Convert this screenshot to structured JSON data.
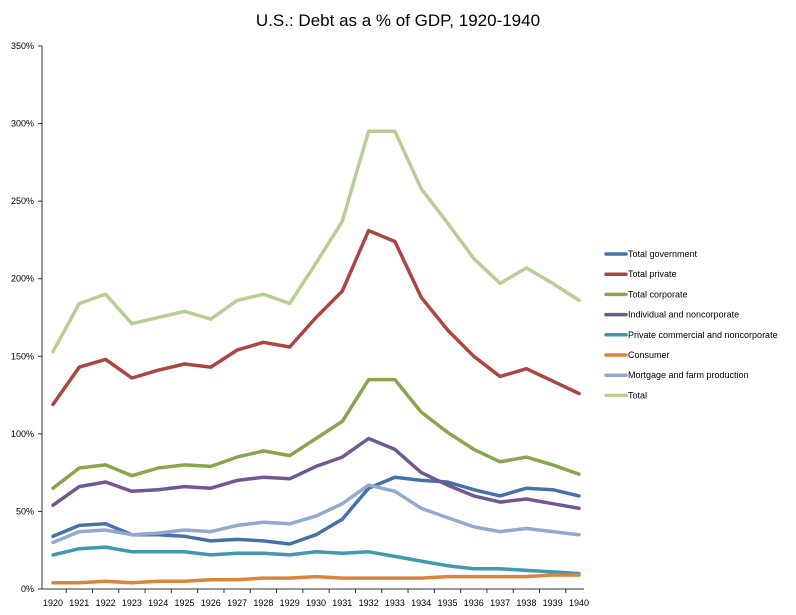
{
  "chart_data": {
    "type": "line",
    "title": "U.S.: Debt as a % of GDP, 1920-1940",
    "xlabel": "",
    "ylabel": "",
    "ylim": [
      0,
      350
    ],
    "yticks": [
      0,
      50,
      100,
      150,
      200,
      250,
      300,
      350
    ],
    "ytick_labels": [
      "0%",
      "50%",
      "100%",
      "150%",
      "200%",
      "250%",
      "300%",
      "350%"
    ],
    "grid": false,
    "legend_position": "right",
    "x": [
      "1920",
      "1921",
      "1922",
      "1923",
      "1924",
      "1925",
      "1926",
      "1927",
      "1928",
      "1929",
      "1930",
      "1931",
      "1932",
      "1933",
      "1934",
      "1935",
      "1936",
      "1937",
      "1938",
      "1939",
      "1940"
    ],
    "series": [
      {
        "name": "Total government",
        "color": "#4573a7",
        "values": [
          34,
          41,
          42,
          35,
          35,
          34,
          31,
          32,
          31,
          29,
          35,
          45,
          65,
          72,
          70,
          69,
          64,
          60,
          65,
          64,
          60
        ]
      },
      {
        "name": "Total private",
        "color": "#aa4643",
        "values": [
          119,
          143,
          148,
          136,
          141,
          145,
          143,
          154,
          159,
          156,
          175,
          192,
          231,
          224,
          188,
          167,
          150,
          137,
          142,
          134,
          126
        ]
      },
      {
        "name": "Total corporate",
        "color": "#89a54e",
        "values": [
          65,
          78,
          80,
          73,
          78,
          80,
          79,
          85,
          89,
          86,
          97,
          108,
          135,
          135,
          114,
          101,
          90,
          82,
          85,
          80,
          74
        ]
      },
      {
        "name": "Individual and noncorporate",
        "color": "#71588f",
        "values": [
          54,
          66,
          69,
          63,
          64,
          66,
          65,
          70,
          72,
          71,
          79,
          85,
          97,
          90,
          75,
          67,
          60,
          56,
          58,
          55,
          52
        ]
      },
      {
        "name": "Private commercial and noncorporate",
        "color": "#4198af",
        "values": [
          22,
          26,
          27,
          24,
          24,
          24,
          22,
          23,
          23,
          22,
          24,
          23,
          24,
          21,
          18,
          15,
          13,
          13,
          12,
          11,
          10
        ]
      },
      {
        "name": "Consumer",
        "color": "#db843d",
        "values": [
          4,
          4,
          5,
          4,
          5,
          5,
          6,
          6,
          7,
          7,
          8,
          7,
          7,
          7,
          7,
          8,
          8,
          8,
          8,
          9,
          9
        ]
      },
      {
        "name": "Mortgage and farm production",
        "color": "#93a9cf",
        "values": [
          30,
          37,
          38,
          35,
          36,
          38,
          37,
          41,
          43,
          42,
          47,
          55,
          67,
          63,
          52,
          46,
          40,
          37,
          39,
          37,
          35
        ]
      },
      {
        "name": "Total",
        "color": "#b9cd96",
        "values": [
          153,
          184,
          190,
          171,
          175,
          179,
          174,
          186,
          190,
          184,
          210,
          237,
          295,
          295,
          258,
          236,
          213,
          197,
          207,
          197,
          186
        ]
      }
    ]
  }
}
